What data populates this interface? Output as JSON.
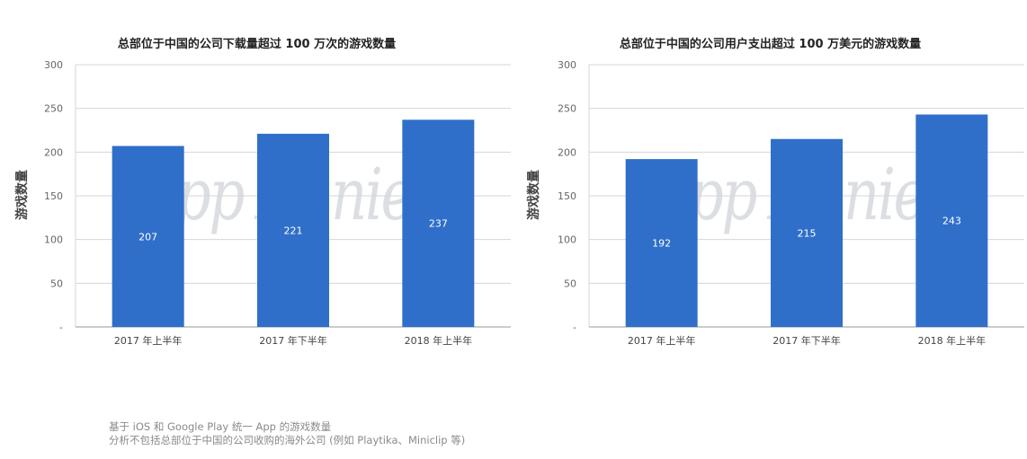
{
  "watermark": "App Annie",
  "footnotes": [
    "基于 iOS 和 Google Play 统一 App 的游戏数量",
    "分析不包括总部位于中国的公司收购的海外公司 (例如 Playtika、Miniclip 等)"
  ],
  "colors": {
    "bar": "#2f6fc9",
    "grid": "#d6d6d6",
    "axis": "#999999",
    "label": "#ffffff"
  },
  "chart_data": [
    {
      "type": "bar",
      "title": "总部位于中国的公司下载量超过 100 万次的游戏数量",
      "xlabel": "",
      "ylabel": "游戏数量",
      "categories": [
        "2017 年上半年",
        "2017 年下半年",
        "2018 年上半年"
      ],
      "values": [
        207,
        221,
        237
      ],
      "ylim": [
        0,
        300
      ],
      "yticks": [
        0,
        50,
        100,
        150,
        200,
        250,
        300
      ],
      "ytick_labels": [
        "-",
        "50",
        "100",
        "150",
        "200",
        "250",
        "300"
      ],
      "grid": true,
      "legend": "none"
    },
    {
      "type": "bar",
      "title": "总部位于中国的公司用户支出超过 100 万美元的游戏数量",
      "xlabel": "",
      "ylabel": "游戏数量",
      "categories": [
        "2017 年上半年",
        "2017 年下半年",
        "2018 年上半年"
      ],
      "values": [
        192,
        215,
        243
      ],
      "ylim": [
        0,
        300
      ],
      "yticks": [
        0,
        50,
        100,
        150,
        200,
        250,
        300
      ],
      "ytick_labels": [
        "-",
        "50",
        "100",
        "150",
        "200",
        "250",
        "300"
      ],
      "grid": true,
      "legend": "none"
    }
  ]
}
